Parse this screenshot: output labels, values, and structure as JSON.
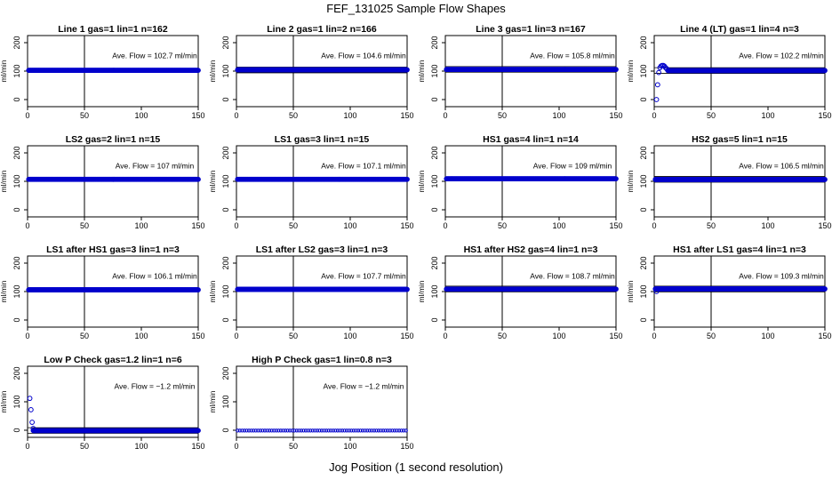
{
  "title": "FEF_131025  Sample Flow Shapes",
  "xlabel": "Jog Position (1 second resolution)",
  "chart_data": [
    {
      "type": "scatter",
      "title": "Line 1 gas=1 lin=1 n=162",
      "annotation": "Ave. Flow = 102.7  ml/min",
      "ylabel": "ml/min",
      "xlim": [
        0,
        150
      ],
      "ylim": [
        -25,
        225
      ],
      "xticks": [
        0,
        50,
        100,
        150
      ],
      "yticks": [
        0,
        100,
        200
      ],
      "ref_vline": 50,
      "ref_hlines": [],
      "color": "#0000cc",
      "series": [
        {
          "x": [
            1,
            150
          ],
          "y": [
            102.7,
            102.7
          ]
        }
      ],
      "extra_points": []
    },
    {
      "type": "scatter",
      "title": "Line 2 gas=1 lin=2 n=166",
      "annotation": "Ave. Flow = 104.6  ml/min",
      "ylabel": "ml/min",
      "xlim": [
        0,
        150
      ],
      "ylim": [
        -25,
        225
      ],
      "xticks": [
        0,
        50,
        100,
        150
      ],
      "yticks": [
        0,
        100,
        200
      ],
      "ref_vline": 50,
      "ref_hlines": [
        94,
        114
      ],
      "color": "#0000cc",
      "series": [
        {
          "x": [
            1,
            150
          ],
          "y": [
            104.6,
            104.6
          ]
        }
      ],
      "extra_points": []
    },
    {
      "type": "scatter",
      "title": "Line 3 gas=1 lin=3 n=167",
      "annotation": "Ave. Flow = 105.8  ml/min",
      "ylabel": "ml/min",
      "xlim": [
        0,
        150
      ],
      "ylim": [
        -25,
        225
      ],
      "xticks": [
        0,
        50,
        100,
        150
      ],
      "yticks": [
        0,
        100,
        200
      ],
      "ref_vline": 50,
      "ref_hlines": [
        96,
        116
      ],
      "color": "#0000cc",
      "series": [
        {
          "x": [
            1,
            150
          ],
          "y": [
            105.8,
            105.8
          ]
        }
      ],
      "extra_points": []
    },
    {
      "type": "scatter",
      "title": "Line 4 (LT) gas=1 lin=4 n=3",
      "annotation": "Ave. Flow = 102.2  ml/min",
      "ylabel": "ml/min",
      "xlim": [
        0,
        150
      ],
      "ylim": [
        -25,
        225
      ],
      "xticks": [
        0,
        50,
        100,
        150
      ],
      "yticks": [
        0,
        100,
        200
      ],
      "ref_vline": 50,
      "ref_hlines": [
        92,
        112
      ],
      "color": "#0000cc",
      "series": [
        {
          "x": [
            12,
            150
          ],
          "y": [
            102.2,
            102.2
          ]
        }
      ],
      "extra_points": [
        [
          2,
          0
        ],
        [
          3,
          52
        ],
        [
          4,
          95
        ],
        [
          5,
          112
        ],
        [
          6,
          118
        ],
        [
          7,
          120
        ],
        [
          8,
          120
        ],
        [
          9,
          117
        ],
        [
          10,
          112
        ],
        [
          11,
          108
        ]
      ]
    },
    {
      "type": "scatter",
      "title": "LS2 gas=2 lin=1 n=15",
      "annotation": "Ave. Flow =  107  ml/min",
      "ylabel": "ml/min",
      "xlim": [
        0,
        150
      ],
      "ylim": [
        -25,
        225
      ],
      "xticks": [
        0,
        50,
        100,
        150
      ],
      "yticks": [
        0,
        100,
        200
      ],
      "ref_vline": 50,
      "ref_hlines": [],
      "color": "#0000cc",
      "series": [
        {
          "x": [
            1,
            150
          ],
          "y": [
            107,
            107
          ]
        }
      ],
      "extra_points": []
    },
    {
      "type": "scatter",
      "title": "LS1 gas=3 lin=1 n=15",
      "annotation": "Ave. Flow = 107.1  ml/min",
      "ylabel": "ml/min",
      "xlim": [
        0,
        150
      ],
      "ylim": [
        -25,
        225
      ],
      "xticks": [
        0,
        50,
        100,
        150
      ],
      "yticks": [
        0,
        100,
        200
      ],
      "ref_vline": 50,
      "ref_hlines": [],
      "color": "#0000cc",
      "series": [
        {
          "x": [
            1,
            150
          ],
          "y": [
            107.1,
            107.1
          ]
        }
      ],
      "extra_points": []
    },
    {
      "type": "scatter",
      "title": "HS1 gas=4 lin=1 n=14",
      "annotation": "Ave. Flow =  109  ml/min",
      "ylabel": "ml/min",
      "xlim": [
        0,
        150
      ],
      "ylim": [
        -25,
        225
      ],
      "xticks": [
        0,
        50,
        100,
        150
      ],
      "yticks": [
        0,
        100,
        200
      ],
      "ref_vline": 50,
      "ref_hlines": [],
      "color": "#0000cc",
      "series": [
        {
          "x": [
            1,
            150
          ],
          "y": [
            109,
            109
          ]
        }
      ],
      "extra_points": []
    },
    {
      "type": "scatter",
      "title": "HS2 gas=5 lin=1 n=15",
      "annotation": "Ave. Flow = 106.5  ml/min",
      "ylabel": "ml/min",
      "xlim": [
        0,
        150
      ],
      "ylim": [
        -25,
        225
      ],
      "xticks": [
        0,
        50,
        100,
        150
      ],
      "yticks": [
        0,
        100,
        200
      ],
      "ref_vline": 50,
      "ref_hlines": [
        97,
        117
      ],
      "color": "#0000cc",
      "series": [
        {
          "x": [
            1,
            150
          ],
          "y": [
            106.5,
            106.5
          ]
        }
      ],
      "extra_points": []
    },
    {
      "type": "scatter",
      "title": "LS1 after HS1 gas=3 lin=1 n=3",
      "annotation": "Ave. Flow =  106.1  ml/min",
      "ylabel": "ml/min",
      "xlim": [
        0,
        150
      ],
      "ylim": [
        -25,
        225
      ],
      "xticks": [
        0,
        50,
        100,
        150
      ],
      "yticks": [
        0,
        100,
        200
      ],
      "ref_vline": 50,
      "ref_hlines": [],
      "color": "#0000cc",
      "series": [
        {
          "x": [
            1,
            150
          ],
          "y": [
            106.1,
            106.1
          ]
        }
      ],
      "extra_points": []
    },
    {
      "type": "scatter",
      "title": "LS1 after LS2 gas=3 lin=1 n=3",
      "annotation": "Ave. Flow =  107.7  ml/min",
      "ylabel": "ml/min",
      "xlim": [
        0,
        150
      ],
      "ylim": [
        -25,
        225
      ],
      "xticks": [
        0,
        50,
        100,
        150
      ],
      "yticks": [
        0,
        100,
        200
      ],
      "ref_vline": 50,
      "ref_hlines": [],
      "color": "#0000cc",
      "series": [
        {
          "x": [
            1,
            150
          ],
          "y": [
            107.7,
            107.7
          ]
        }
      ],
      "extra_points": []
    },
    {
      "type": "scatter",
      "title": "HS1 after HS2 gas=4 lin=1 n=3",
      "annotation": "Ave. Flow = 108.7  ml/min",
      "ylabel": "ml/min",
      "xlim": [
        0,
        150
      ],
      "ylim": [
        -25,
        225
      ],
      "xticks": [
        0,
        50,
        100,
        150
      ],
      "yticks": [
        0,
        100,
        200
      ],
      "ref_vline": 50,
      "ref_hlines": [
        99,
        119
      ],
      "color": "#0000cc",
      "series": [
        {
          "x": [
            1,
            150
          ],
          "y": [
            108.7,
            108.7
          ]
        }
      ],
      "extra_points": []
    },
    {
      "type": "scatter",
      "title": "HS1 after LS1 gas=4 lin=1 n=3",
      "annotation": "Ave. Flow = 109.3  ml/min",
      "ylabel": "ml/min",
      "xlim": [
        0,
        150
      ],
      "ylim": [
        -25,
        225
      ],
      "xticks": [
        0,
        50,
        100,
        150
      ],
      "yticks": [
        0,
        100,
        200
      ],
      "ref_vline": 50,
      "ref_hlines": [
        99,
        119
      ],
      "color": "#0000cc",
      "series": [
        {
          "x": [
            1,
            150
          ],
          "y": [
            109.3,
            109.3
          ]
        }
      ],
      "extra_points": [
        [
          2,
          100
        ]
      ]
    },
    {
      "type": "scatter",
      "title": "Low P Check gas=1.2 lin=1 n=6",
      "annotation": "Ave. Flow =  −1.2  ml/min",
      "ylabel": "ml/min",
      "xlim": [
        0,
        150
      ],
      "ylim": [
        -25,
        225
      ],
      "xticks": [
        0,
        50,
        100,
        150
      ],
      "yticks": [
        0,
        100,
        200
      ],
      "ref_vline": 50,
      "ref_hlines": [
        -11,
        9
      ],
      "color": "#0000cc",
      "series": [
        {
          "x": [
            5,
            150
          ],
          "y": [
            -1.2,
            -1.2
          ]
        }
      ],
      "extra_points": [
        [
          2,
          112
        ],
        [
          3,
          72
        ],
        [
          4,
          28
        ],
        [
          5,
          6
        ]
      ]
    },
    {
      "type": "scatter",
      "title": "High P Check gas=1 lin=0.8 n=3",
      "annotation": "Ave. Flow =  −1.2  ml/min",
      "ylabel": "ml/min",
      "xlim": [
        0,
        150
      ],
      "ylim": [
        -25,
        225
      ],
      "xticks": [
        0,
        50,
        100,
        150
      ],
      "yticks": [
        0,
        100,
        200
      ],
      "ref_vline": 50,
      "ref_hlines": [],
      "color": "#0000cc",
      "sparse": true,
      "series": [
        {
          "x": [
            1,
            150
          ],
          "y": [
            -1.2,
            -1.2
          ]
        }
      ],
      "extra_points": []
    }
  ]
}
